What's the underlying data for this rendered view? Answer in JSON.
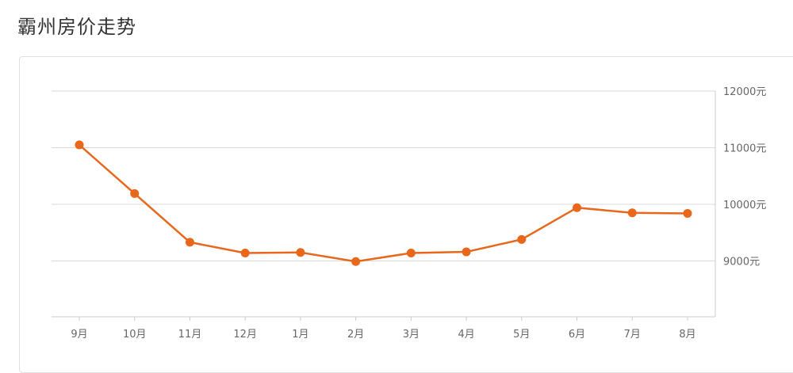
{
  "page": {
    "title": "霸州房价走势"
  },
  "chart_data": {
    "type": "line",
    "title": "霸州房价走势",
    "xlabel": "",
    "ylabel": "",
    "categories": [
      "9月",
      "10月",
      "11月",
      "12月",
      "1月",
      "2月",
      "3月",
      "4月",
      "5月",
      "6月",
      "7月",
      "8月"
    ],
    "values": [
      11050,
      10190,
      9330,
      9140,
      9150,
      8990,
      9140,
      9160,
      9380,
      9940,
      9850,
      9840
    ],
    "ylim": [
      8000,
      12000
    ],
    "y_ticks": [
      {
        "value": 12000,
        "label": "12000元"
      },
      {
        "value": 11000,
        "label": "11000元"
      },
      {
        "value": 10000,
        "label": "10000元"
      },
      {
        "value": 9000,
        "label": "9000元"
      }
    ],
    "grid": true,
    "legend": "none",
    "colors": {
      "line": "#e8671b",
      "marker": "#e8671b",
      "grid": "#d9d9d9",
      "axis": "#cccccc"
    }
  }
}
